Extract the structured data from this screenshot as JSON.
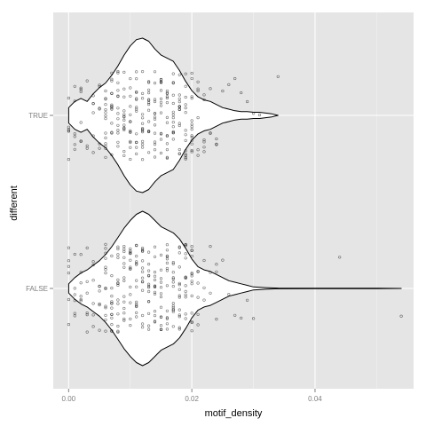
{
  "chart_data": {
    "type": "violin",
    "xlabel": "motif_density",
    "ylabel": "different",
    "xlim": [
      -0.0025,
      0.056
    ],
    "x_ticks": [
      0.0,
      0.02,
      0.04
    ],
    "x_tick_labels": [
      "0.00",
      "0.02",
      "0.04"
    ],
    "categories": [
      "TRUE",
      "FALSE"
    ],
    "grid": true,
    "series": [
      {
        "category": "TRUE",
        "x_range": [
          0.0,
          0.034
        ],
        "density_profile": [
          [
            0.0,
            0.1
          ],
          [
            0.001,
            0.18
          ],
          [
            0.002,
            0.22
          ],
          [
            0.003,
            0.18
          ],
          [
            0.004,
            0.28
          ],
          [
            0.005,
            0.36
          ],
          [
            0.006,
            0.42
          ],
          [
            0.007,
            0.52
          ],
          [
            0.008,
            0.64
          ],
          [
            0.009,
            0.78
          ],
          [
            0.01,
            0.9
          ],
          [
            0.011,
            0.98
          ],
          [
            0.012,
            1.0
          ],
          [
            0.013,
            0.96
          ],
          [
            0.014,
            0.86
          ],
          [
            0.015,
            0.78
          ],
          [
            0.016,
            0.74
          ],
          [
            0.017,
            0.7
          ],
          [
            0.018,
            0.58
          ],
          [
            0.019,
            0.44
          ],
          [
            0.02,
            0.32
          ],
          [
            0.021,
            0.24
          ],
          [
            0.022,
            0.2
          ],
          [
            0.023,
            0.18
          ],
          [
            0.024,
            0.14
          ],
          [
            0.025,
            0.1
          ],
          [
            0.026,
            0.08
          ],
          [
            0.027,
            0.06
          ],
          [
            0.028,
            0.05
          ],
          [
            0.029,
            0.05
          ],
          [
            0.03,
            0.04
          ],
          [
            0.031,
            0.04
          ],
          [
            0.032,
            0.03
          ],
          [
            0.033,
            0.02
          ],
          [
            0.034,
            0.0
          ]
        ],
        "jitter_x": [
          0.0,
          0.0,
          0.001,
          0.001,
          0.002,
          0.002,
          0.003,
          0.004,
          0.004,
          0.005,
          0.005,
          0.006,
          0.006,
          0.007,
          0.007,
          0.008,
          0.008,
          0.009,
          0.009,
          0.01,
          0.01,
          0.011,
          0.011,
          0.012,
          0.012,
          0.013,
          0.013,
          0.014,
          0.014,
          0.015,
          0.015,
          0.016,
          0.016,
          0.017,
          0.017,
          0.018,
          0.018,
          0.019,
          0.019,
          0.02,
          0.02,
          0.021,
          0.021,
          0.022,
          0.022,
          0.023,
          0.024,
          0.025,
          0.026,
          0.027,
          0.028,
          0.029,
          0.03,
          0.031,
          0.034
        ]
      },
      {
        "category": "FALSE",
        "x_range": [
          0.0,
          0.054
        ],
        "density_profile": [
          [
            0.0,
            0.06
          ],
          [
            0.001,
            0.14
          ],
          [
            0.002,
            0.2
          ],
          [
            0.003,
            0.24
          ],
          [
            0.004,
            0.3
          ],
          [
            0.005,
            0.36
          ],
          [
            0.006,
            0.44
          ],
          [
            0.007,
            0.54
          ],
          [
            0.008,
            0.66
          ],
          [
            0.009,
            0.78
          ],
          [
            0.01,
            0.88
          ],
          [
            0.011,
            0.96
          ],
          [
            0.012,
            1.0
          ],
          [
            0.013,
            0.96
          ],
          [
            0.014,
            0.88
          ],
          [
            0.015,
            0.8
          ],
          [
            0.016,
            0.76
          ],
          [
            0.017,
            0.72
          ],
          [
            0.018,
            0.64
          ],
          [
            0.019,
            0.52
          ],
          [
            0.02,
            0.38
          ],
          [
            0.021,
            0.28
          ],
          [
            0.022,
            0.24
          ],
          [
            0.023,
            0.22
          ],
          [
            0.024,
            0.18
          ],
          [
            0.025,
            0.14
          ],
          [
            0.026,
            0.1
          ],
          [
            0.027,
            0.08
          ],
          [
            0.028,
            0.06
          ],
          [
            0.029,
            0.04
          ],
          [
            0.03,
            0.02
          ],
          [
            0.032,
            0.01
          ],
          [
            0.034,
            0.005
          ],
          [
            0.04,
            0.004
          ],
          [
            0.044,
            0.004
          ],
          [
            0.05,
            0.002
          ],
          [
            0.054,
            0.0
          ]
        ],
        "jitter_x": [
          0.0,
          0.0,
          0.001,
          0.001,
          0.002,
          0.002,
          0.003,
          0.003,
          0.004,
          0.004,
          0.005,
          0.005,
          0.006,
          0.006,
          0.007,
          0.007,
          0.008,
          0.008,
          0.009,
          0.009,
          0.01,
          0.01,
          0.011,
          0.011,
          0.012,
          0.012,
          0.013,
          0.013,
          0.014,
          0.014,
          0.015,
          0.015,
          0.016,
          0.016,
          0.017,
          0.017,
          0.018,
          0.018,
          0.019,
          0.019,
          0.02,
          0.02,
          0.021,
          0.021,
          0.022,
          0.023,
          0.024,
          0.025,
          0.026,
          0.027,
          0.028,
          0.029,
          0.03,
          0.044,
          0.054
        ]
      }
    ]
  },
  "colors": {
    "panel_background": "#e5e5e5",
    "grid_major": "#ffffff",
    "grid_minor": "#f2f2f2",
    "violin_fill": "#ffffff",
    "violin_stroke": "#000000",
    "point_stroke": "#000000",
    "tick_text": "#7f7f7f",
    "title_text": "#000000"
  }
}
